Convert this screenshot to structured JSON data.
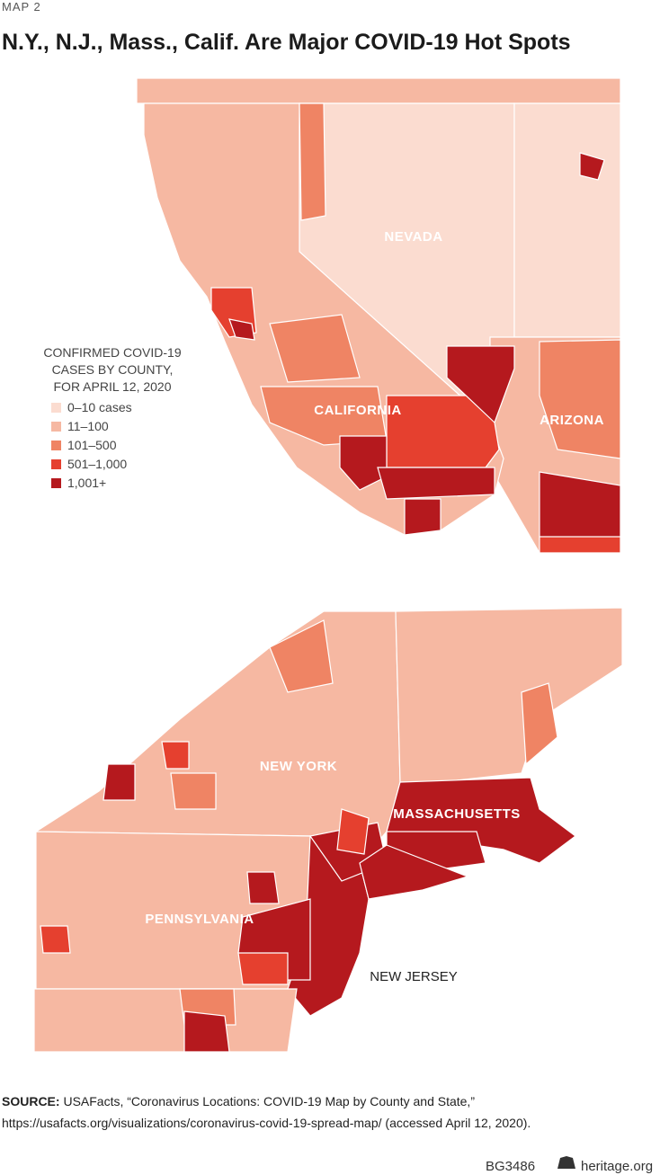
{
  "header": {
    "kicker": "MAP 2",
    "title": "N.Y., N.J., Mass., Calif. Are Major COVID-19 Hot Spots"
  },
  "legend": {
    "title_lines": [
      "CONFIRMED COVID-19",
      "CASES BY COUNTY,",
      "FOR APRIL 12, 2020"
    ],
    "items": [
      {
        "label": "0–10 cases",
        "color": "#fbdcd0"
      },
      {
        "label": "11–100",
        "color": "#f6b8a2"
      },
      {
        "label": "101–500",
        "color": "#ef8464"
      },
      {
        "label": "501–1,000",
        "color": "#e5402f"
      },
      {
        "label": "1,001+",
        "color": "#b5191e"
      }
    ]
  },
  "map_labels": {
    "west": [
      "NEVADA",
      "CALIFORNIA",
      "ARIZONA"
    ],
    "east": [
      "NEW YORK",
      "MASSACHUSETTS",
      "PENNSYLVANIA",
      "NEW JERSEY"
    ]
  },
  "source": {
    "label": "SOURCE:",
    "text": "USAFacts, “Coronavirus Locations: COVID-19 Map by County and State,”",
    "url": "https://usafacts.org/visualizations/coronavirus-covid-19-spread-map/ (accessed April 12, 2020)."
  },
  "footer": {
    "code": "BG3486",
    "site": "heritage.org"
  }
}
